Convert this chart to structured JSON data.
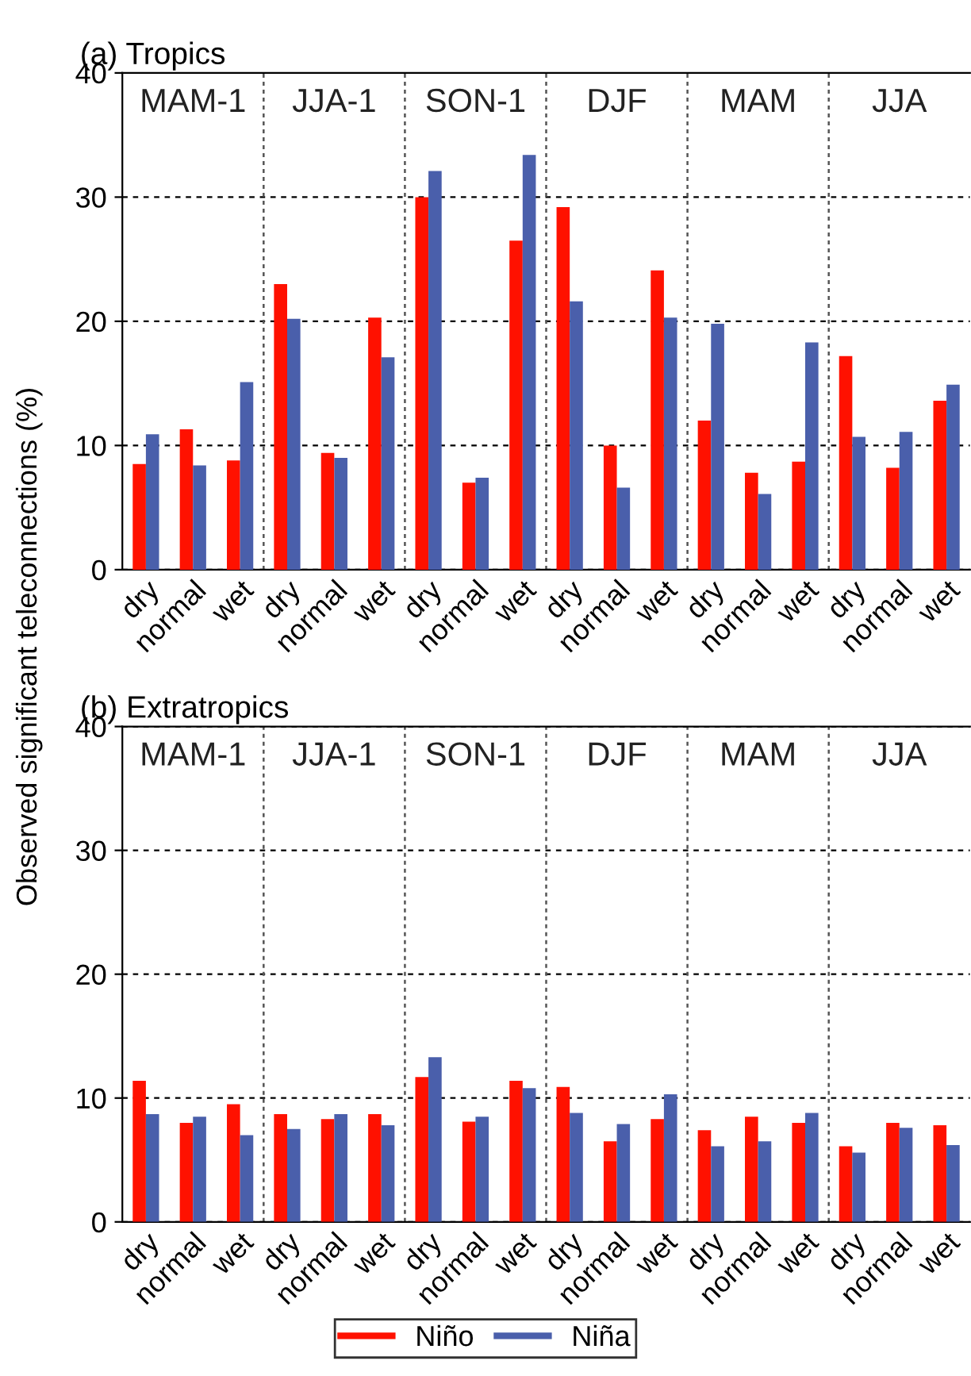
{
  "chart_data": [
    {
      "type": "bar",
      "title": "(a) Tropics",
      "ylabel": "Observed significant teleconnections (%)",
      "categories": [
        "dry",
        "normal",
        "wet",
        "dry",
        "normal",
        "wet",
        "dry",
        "normal",
        "wet",
        "dry",
        "normal",
        "wet",
        "dry",
        "normal",
        "wet",
        "dry",
        "normal",
        "wet"
      ],
      "series": [
        {
          "name": "Niño",
          "color": "#ff1100",
          "values": [
            8.5,
            11.3,
            8.8,
            23.0,
            9.4,
            20.3,
            30.0,
            7.0,
            26.5,
            29.2,
            10.0,
            24.1,
            12.0,
            7.8,
            8.7,
            17.2,
            8.2,
            13.6
          ]
        },
        {
          "name": "Niña",
          "color": "#4a5fab",
          "values": [
            10.9,
            8.4,
            15.1,
            20.2,
            9.0,
            17.1,
            32.1,
            7.4,
            33.4,
            21.6,
            6.6,
            20.3,
            19.8,
            6.1,
            18.3,
            10.7,
            11.1,
            14.9
          ]
        }
      ],
      "ylim": [
        0,
        40
      ],
      "yticks": [
        0,
        10,
        20,
        30,
        40
      ],
      "grid": "y",
      "legend": "bottom",
      "annotations": [
        "MAM-1",
        "JJA-1",
        "SON-1",
        "DJF",
        "MAM",
        "JJA"
      ]
    },
    {
      "type": "bar",
      "title": "(b) Extratropics",
      "categories": [
        "dry",
        "normal",
        "wet",
        "dry",
        "normal",
        "wet",
        "dry",
        "normal",
        "wet",
        "dry",
        "normal",
        "wet",
        "dry",
        "normal",
        "wet",
        "dry",
        "normal",
        "wet"
      ],
      "series": [
        {
          "name": "Niño",
          "color": "#ff1100",
          "values": [
            11.4,
            8.0,
            9.5,
            8.7,
            8.3,
            8.7,
            11.7,
            8.1,
            11.4,
            10.9,
            6.5,
            8.3,
            7.4,
            8.5,
            8.0,
            6.1,
            8.0,
            7.8
          ]
        },
        {
          "name": "Niña",
          "color": "#4a5fab",
          "values": [
            8.7,
            8.5,
            7.0,
            7.5,
            8.7,
            7.8,
            13.3,
            8.5,
            10.8,
            8.8,
            7.9,
            10.3,
            6.1,
            6.5,
            8.8,
            5.6,
            7.6,
            6.2
          ]
        }
      ],
      "ylim": [
        0,
        40
      ],
      "yticks": [
        0,
        10,
        20,
        30,
        40
      ],
      "grid": "y",
      "legend": "bottom",
      "annotations": [
        "MAM-1",
        "JJA-1",
        "SON-1",
        "DJF",
        "MAM",
        "JJA"
      ]
    }
  ]
}
